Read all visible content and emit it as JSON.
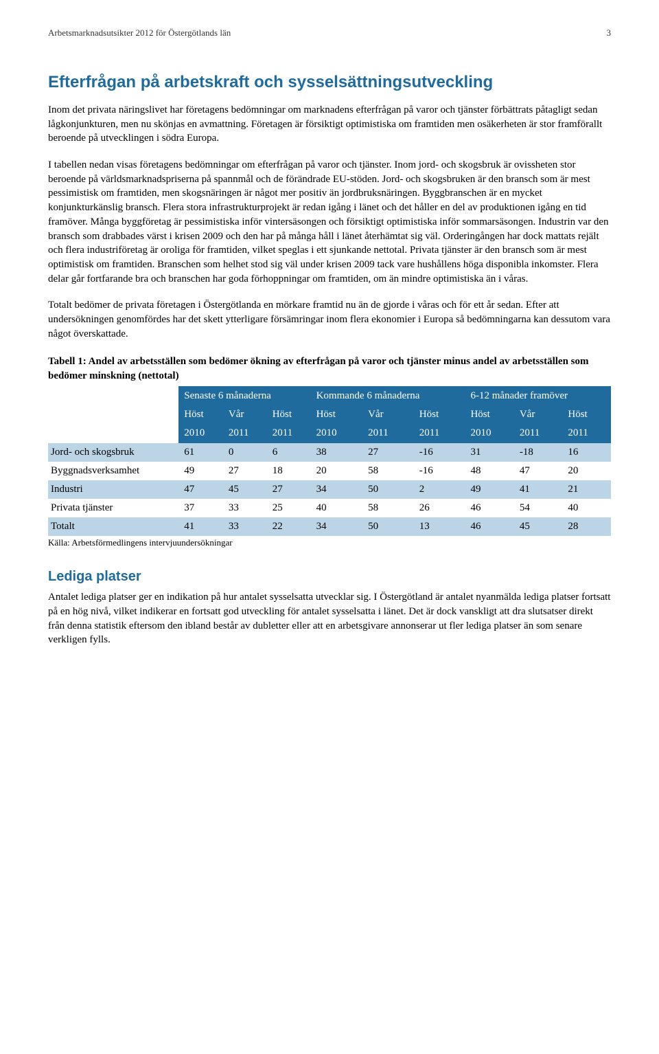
{
  "header": {
    "title": "Arbetsmarknadsutsikter 2012 för Östergötlands län",
    "page_number": "3"
  },
  "section1": {
    "heading": "Efterfrågan på arbetskraft och sysselsättningsutveckling",
    "p1": "Inom det privata näringslivet har företagens bedömningar om marknadens efterfrågan på varor och tjänster förbättrats påtagligt sedan lågkonjunkturen, men nu skönjas en avmattning. Företagen är försiktigt optimistiska om framtiden men osäkerheten är stor framförallt beroende på utvecklingen i södra Europa.",
    "p2": "I tabellen nedan visas företagens bedömningar om efterfrågan på varor och tjänster. Inom jord- och skogsbruk är ovissheten stor beroende på världsmarknadspriserna på spannmål och de förändrade EU-stöden. Jord- och skogsbruken är den bransch som är mest pessimistisk om framtiden, men skogsnäringen är något mer positiv än jordbruksnäringen. Byggbranschen är en mycket konjunkturkänslig bransch. Flera stora infrastrukturprojekt är redan igång i länet och det håller en del av produktionen igång en tid framöver. Många byggföretag är pessimistiska inför vintersäsongen och försiktigt optimistiska inför sommarsäsongen. Industrin var den bransch som drabbades värst i krisen 2009 och den har på många håll i länet återhämtat sig väl. Orderingången har dock mattats rejält och flera industriföretag är oroliga för framtiden, vilket speglas i ett sjunkande nettotal. Privata tjänster är den bransch som är mest optimistisk om framtiden. Branschen som helhet stod sig väl under krisen 2009 tack vare hushållens höga disponibla inkomster. Flera delar går fortfarande bra och branschen har goda förhoppningar om framtiden, om än mindre optimistiska än i våras.",
    "p3": "Totalt bedömer de privata företagen i Östergötlanda en mörkare framtid nu än de gjorde i våras och för ett år sedan. Efter att undersökningen genomfördes har det skett ytterligare försämringar inom flera ekonomier i Europa så bedömningarna kan dessutom vara något överskattade."
  },
  "table": {
    "title": "Tabell 1: Andel av arbetsställen som bedömer ökning av efterfrågan på varor och tjänster minus andel av arbetsställen som bedömer minskning (nettotal)",
    "group_headers": [
      "",
      "Senaste 6 månaderna",
      "Kommande 6 månaderna",
      "6-12 månader framöver"
    ],
    "sub_headers_row1": [
      "",
      "Höst",
      "Vår",
      "Höst",
      "Höst",
      "Vår",
      "Höst",
      "Höst",
      "Vår",
      "Höst"
    ],
    "sub_headers_row2": [
      "",
      "2010",
      "2011",
      "2011",
      "2010",
      "2011",
      "2011",
      "2010",
      "2011",
      "2011"
    ],
    "rows": [
      {
        "label": "Jord- och skogsbruk",
        "cells": [
          "61",
          "0",
          "6",
          "38",
          "27",
          "-16",
          "31",
          "-18",
          "16"
        ]
      },
      {
        "label": "Byggnadsverksamhet",
        "cells": [
          "49",
          "27",
          "18",
          "20",
          "58",
          "-16",
          "48",
          "47",
          "20"
        ]
      },
      {
        "label": "Industri",
        "cells": [
          "47",
          "45",
          "27",
          "34",
          "50",
          "2",
          "49",
          "41",
          "21"
        ]
      },
      {
        "label": "Privata tjänster",
        "cells": [
          "37",
          "33",
          "25",
          "40",
          "58",
          "26",
          "46",
          "54",
          "40"
        ]
      },
      {
        "label": "Totalt",
        "cells": [
          "41",
          "33",
          "22",
          "34",
          "50",
          "13",
          "46",
          "45",
          "28"
        ]
      }
    ],
    "source": "Källa: Arbetsförmedlingens intervjuundersökningar",
    "colors": {
      "header_bg": "#1f6b9e",
      "header_text": "#ffffff",
      "row_odd_bg": "#bcd5e6",
      "row_even_bg": "#ffffff"
    }
  },
  "section2": {
    "heading": "Lediga platser",
    "p1": "Antalet lediga platser ger en indikation på hur antalet sysselsatta utvecklar sig. I Östergötland är antalet nyanmälda lediga platser fortsatt på en hög nivå, vilket indikerar en fortsatt god utveckling för antalet sysselsatta i länet. Det är dock vanskligt att dra slutsatser direkt från denna statistik eftersom den ibland består av dubletter eller att en arbetsgivare annonserar ut fler lediga platser än som senare verkligen fylls."
  }
}
